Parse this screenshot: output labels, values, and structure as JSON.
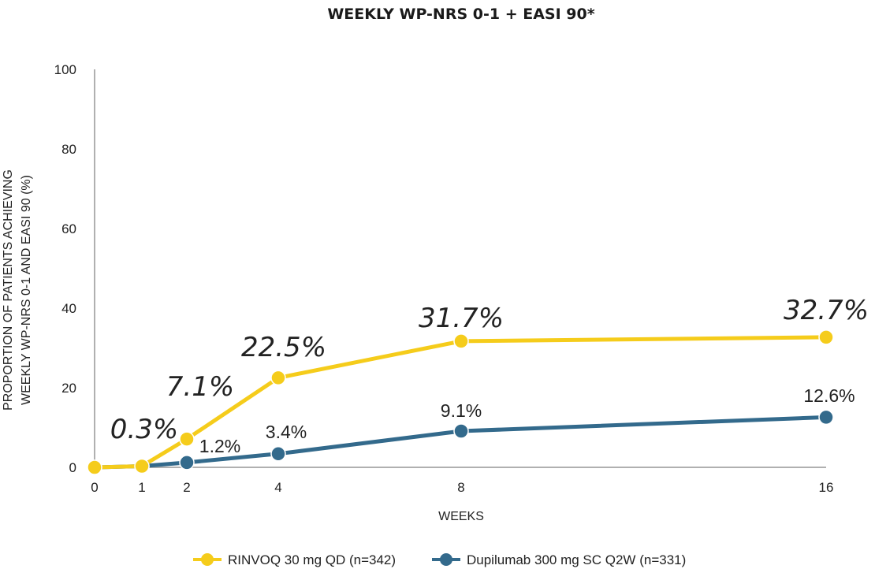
{
  "chart_data": {
    "type": "line",
    "title": "WEEKLY WP-NRS 0-1 + EASI 90*",
    "xlabel": "WEEKS",
    "ylabel_line1": "PROPORTION OF PATIENTS ACHIEVING",
    "ylabel_line2": "WEEKLY WP-NRS 0-1 AND EASI 90 (%)",
    "x": [
      0,
      1,
      2,
      4,
      8,
      16
    ],
    "x_tick_labels": [
      "0",
      "1",
      "2",
      "4",
      "8",
      "16"
    ],
    "ylim": [
      0,
      100
    ],
    "y_ticks": [
      0,
      20,
      40,
      60,
      80,
      100
    ],
    "y_tick_labels": [
      "0",
      "20",
      "40",
      "60",
      "80",
      "100"
    ],
    "grid": false,
    "legend_position": "bottom",
    "series": [
      {
        "name": "RINVOQ 30 mg QD (n=342)",
        "color": "#f5cc1b",
        "values": [
          0,
          0.3,
          7.1,
          22.5,
          31.7,
          32.7
        ],
        "data_labels": [
          "",
          "0.3%",
          "7.1%",
          "22.5%",
          "31.7%",
          "32.7%"
        ]
      },
      {
        "name": "Dupilumab 300 mg SC Q2W (n=331)",
        "color": "#336a8c",
        "values": [
          0,
          0.3,
          1.2,
          3.4,
          9.1,
          12.6
        ],
        "data_labels": [
          "",
          "",
          "1.2%",
          "3.4%",
          "9.1%",
          "12.6%"
        ]
      }
    ]
  }
}
